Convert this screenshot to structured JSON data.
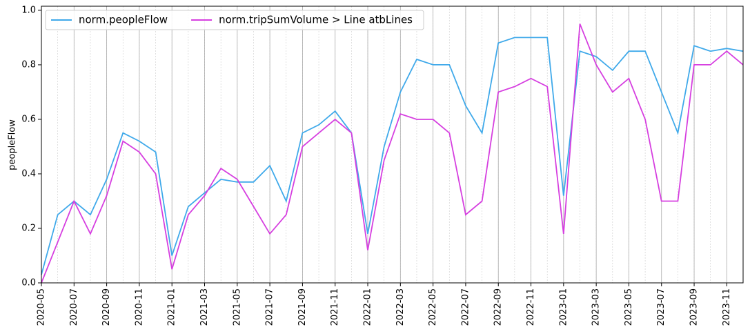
{
  "chart_data": {
    "type": "line",
    "ylabel": "peopleFlow",
    "x": [
      "2020-05",
      "2020-06",
      "2020-07",
      "2020-08",
      "2020-09",
      "2020-10",
      "2020-11",
      "2020-12",
      "2021-01",
      "2021-02",
      "2021-03",
      "2021-04",
      "2021-05",
      "2021-06",
      "2021-07",
      "2021-08",
      "2021-09",
      "2021-10",
      "2021-11",
      "2021-12",
      "2022-01",
      "2022-02",
      "2022-03",
      "2022-04",
      "2022-05",
      "2022-06",
      "2022-07",
      "2022-08",
      "2022-09",
      "2022-10",
      "2022-11",
      "2022-12",
      "2023-01",
      "2023-02",
      "2023-03",
      "2023-04",
      "2023-05",
      "2023-06",
      "2023-07",
      "2023-08",
      "2023-09",
      "2023-10",
      "2023-11",
      "2023-12"
    ],
    "series": [
      {
        "name": "norm.peopleFlow",
        "color": "#3fa9ea",
        "values": [
          0.03,
          0.25,
          0.3,
          0.25,
          0.38,
          0.55,
          0.52,
          0.48,
          0.1,
          0.28,
          0.33,
          0.38,
          0.37,
          0.37,
          0.43,
          0.3,
          0.55,
          0.58,
          0.63,
          0.55,
          0.18,
          0.5,
          0.7,
          0.82,
          0.8,
          0.8,
          0.65,
          0.55,
          0.88,
          0.9,
          0.9,
          0.9,
          0.32,
          0.85,
          0.83,
          0.78,
          0.85,
          0.85,
          0.7,
          0.55,
          0.87,
          0.85,
          0.86,
          0.85
        ]
      },
      {
        "name": "norm.tripSumVolume > Line atbLines",
        "color": "#d63fe0",
        "values": [
          0.0,
          0.15,
          0.3,
          0.18,
          0.32,
          0.52,
          0.48,
          0.4,
          0.05,
          0.25,
          0.32,
          0.42,
          0.38,
          0.28,
          0.18,
          0.25,
          0.5,
          0.55,
          0.6,
          0.55,
          0.12,
          0.45,
          0.62,
          0.6,
          0.6,
          0.55,
          0.25,
          0.3,
          0.7,
          0.72,
          0.75,
          0.72,
          0.18,
          0.95,
          0.8,
          0.7,
          0.75,
          0.6,
          0.3,
          0.3,
          0.8,
          0.8,
          0.85,
          0.8
        ]
      }
    ],
    "xlim": [
      "2020-05",
      "2023-12"
    ],
    "xticks": [
      "2020-05",
      "2020-07",
      "2020-09",
      "2020-11",
      "2021-01",
      "2021-03",
      "2021-05",
      "2021-07",
      "2021-09",
      "2021-11",
      "2022-01",
      "2022-03",
      "2022-05",
      "2022-07",
      "2022-09",
      "2022-11",
      "2023-01",
      "2023-03",
      "2023-05",
      "2023-07",
      "2023-09",
      "2023-11"
    ],
    "ylim": [
      0,
      1.015
    ],
    "yticks": [
      {
        "value": 0,
        "label": "0.0"
      },
      0.2,
      0.4,
      0.6,
      0.8,
      {
        "value": 1,
        "label": "1.0"
      }
    ],
    "grid": true,
    "legend": "upper left"
  }
}
